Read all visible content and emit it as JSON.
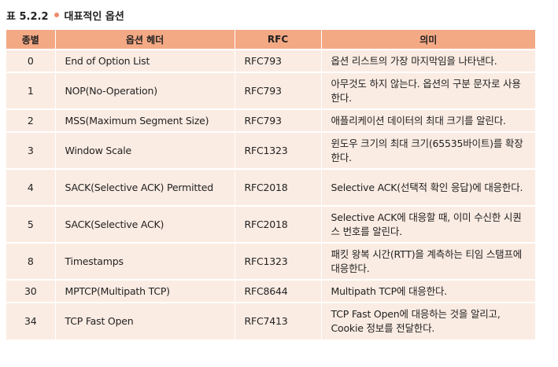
{
  "caption": {
    "label": "표 5.2.2",
    "title": "대표적인 옵션"
  },
  "table": {
    "headers": {
      "type": "종별",
      "name": "옵션 헤더",
      "rfc": "RFC",
      "meaning": "의미"
    },
    "rows": [
      {
        "type": "0",
        "name": "End of Option List",
        "rfc": "RFC793",
        "meaning": "옵션 리스트의 가장 마지막임을 나타낸다."
      },
      {
        "type": "1",
        "name": "NOP(No-Operation)",
        "rfc": "RFC793",
        "meaning": "아무것도 하지 않는다. 옵션의 구분 문자로 사용한다."
      },
      {
        "type": "2",
        "name": "MSS(Maximum Segment Size)",
        "rfc": "RFC793",
        "meaning": "애플리케이션 데이터의 최대 크기를 알린다."
      },
      {
        "type": "3",
        "name": "Window Scale",
        "rfc": "RFC1323",
        "meaning": "윈도우 크기의 최대 크기(65535바이트)를 확장한다."
      },
      {
        "type": "4",
        "name": "SACK(Selective ACK) Permitted",
        "rfc": "RFC2018",
        "meaning": "Selective ACK(선택적 확인 응답)에 대응한다."
      },
      {
        "type": "5",
        "name": "SACK(Selective ACK)",
        "rfc": "RFC2018",
        "meaning": "Selective ACK에 대응할 때, 이미 수신한 시퀀스 번호를 알린다."
      },
      {
        "type": "8",
        "name": "Timestamps",
        "rfc": "RFC1323",
        "meaning": "패킷 왕복 시간(RTT)을 계측하는 티임 스탬프에 대응한다."
      },
      {
        "type": "30",
        "name": "MPTCP(Multipath TCP)",
        "rfc": "RFC8644",
        "meaning": "Multipath TCP에 대응한다."
      },
      {
        "type": "34",
        "name": "TCP Fast Open",
        "rfc": "RFC7413",
        "meaning": "TCP Fast Open에 대응하는 것을 알리고, Cookie 정보를 전달한다."
      }
    ]
  },
  "colors": {
    "header_bg": "#f4a985",
    "row_bg": "#fbece3",
    "bullet": "#f08a6a"
  }
}
